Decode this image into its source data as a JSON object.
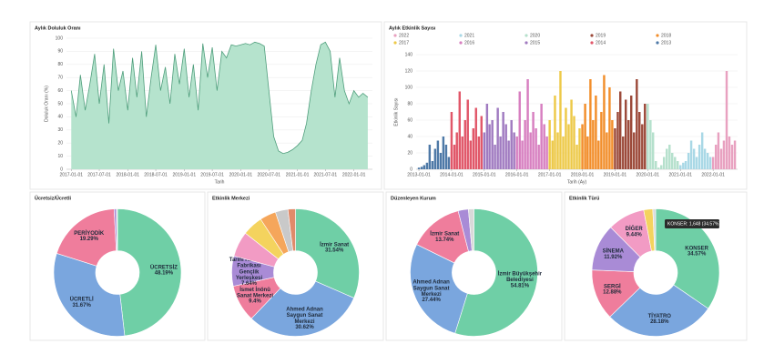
{
  "chart_data": [
    {
      "type": "area",
      "title": "Aylık Doluluk Oranı",
      "ylabel": "Doluluk Oranı (%)",
      "xlabel": "Tarih",
      "color": "#b5e3cd",
      "line_color": "#4f9e7c",
      "x": [
        "2017-01-01",
        "2017-02-01",
        "2017-03-01",
        "2017-04-01",
        "2017-05-01",
        "2017-06-01",
        "2017-07-01",
        "2017-08-01",
        "2017-09-01",
        "2017-10-01",
        "2017-11-01",
        "2017-12-01",
        "2018-01-01",
        "2018-02-01",
        "2018-03-01",
        "2018-04-01",
        "2018-05-01",
        "2018-06-01",
        "2018-07-01",
        "2018-08-01",
        "2018-09-01",
        "2018-10-01",
        "2018-11-01",
        "2018-12-01",
        "2019-01-01",
        "2019-02-01",
        "2019-03-01",
        "2019-04-01",
        "2019-05-01",
        "2019-06-01",
        "2019-07-01",
        "2019-08-01",
        "2019-09-01",
        "2019-10-01",
        "2019-11-01",
        "2019-12-01",
        "2020-01-01",
        "2020-02-01",
        "2020-03-01",
        "2020-04-01",
        "2020-05-01",
        "2020-06-01",
        "2020-07-01",
        "2020-08-01",
        "2020-09-01",
        "2020-10-01",
        "2020-11-01",
        "2020-12-01",
        "2021-01-01",
        "2021-02-01",
        "2021-03-01",
        "2021-04-01",
        "2021-05-01",
        "2021-06-01",
        "2021-07-01",
        "2021-08-01",
        "2021-09-01",
        "2021-10-01",
        "2021-11-01",
        "2021-12-01",
        "2022-01-01",
        "2022-02-01",
        "2022-03-01",
        "2022-04-01"
      ],
      "values": [
        60,
        40,
        72,
        45,
        65,
        88,
        50,
        80,
        35,
        92,
        60,
        75,
        45,
        85,
        55,
        90,
        40,
        70,
        95,
        60,
        78,
        50,
        88,
        65,
        92,
        55,
        80,
        45,
        96,
        70,
        93,
        60,
        90,
        85,
        95,
        94,
        95,
        96,
        95,
        97,
        96,
        94,
        60,
        25,
        14,
        12,
        13,
        15,
        18,
        22,
        35,
        60,
        80,
        95,
        97,
        90,
        55,
        85,
        60,
        50,
        60,
        55,
        58,
        55
      ],
      "xlim": [
        "2016-12-01",
        "2022-05-01"
      ],
      "xticks": [
        "2017-01-01",
        "2017-07-01",
        "2018-01-01",
        "2018-07-01",
        "2019-01-01",
        "2019-07-01",
        "2020-01-01",
        "2020-07-01",
        "2021-01-01",
        "2021-07-01",
        "2022-01-01"
      ],
      "ylim": [
        0,
        100
      ],
      "yticks": [
        0,
        10,
        20,
        30,
        40,
        50,
        60,
        70,
        80,
        90,
        100
      ],
      "grid": true
    },
    {
      "type": "bar",
      "title": "Aylık Etkinlik Sayısı",
      "ylabel": "Etkinlik Sayısı",
      "xlabel": "Tarih (Ay)",
      "series": [
        {
          "name": "2022",
          "color": "#e8a1c0",
          "x": [
            "2022-01-01",
            "2022-02-01",
            "2022-03-01",
            "2022-04-01",
            "2022-05-01",
            "2022-06-01",
            "2022-07-01",
            "2022-08-01",
            "2022-09-01"
          ],
          "values": [
            15,
            30,
            45,
            25,
            35,
            120,
            40,
            30,
            35
          ]
        },
        {
          "name": "2021",
          "color": "#a9d8e6",
          "x": [
            "2021-01-01",
            "2021-02-01",
            "2021-03-01",
            "2021-04-01",
            "2021-05-01",
            "2021-06-01",
            "2021-07-01",
            "2021-08-01",
            "2021-09-01",
            "2021-10-01",
            "2021-11-01",
            "2021-12-01"
          ],
          "values": [
            5,
            8,
            10,
            20,
            35,
            25,
            15,
            30,
            45,
            25,
            20,
            15
          ]
        },
        {
          "name": "2020",
          "color": "#b5e0cc",
          "x": [
            "2020-01-01",
            "2020-02-01",
            "2020-03-01",
            "2020-04-01",
            "2020-05-01",
            "2020-06-01",
            "2020-07-01",
            "2020-08-01",
            "2020-09-01",
            "2020-10-01",
            "2020-11-01",
            "2020-12-01"
          ],
          "values": [
            80,
            60,
            45,
            10,
            2,
            5,
            15,
            25,
            30,
            20,
            15,
            10
          ]
        },
        {
          "name": "2019",
          "color": "#9c4a3a",
          "x": [
            "2019-01-01",
            "2019-02-01",
            "2019-03-01",
            "2019-04-01",
            "2019-05-01",
            "2019-06-01",
            "2019-07-01",
            "2019-08-01",
            "2019-09-01",
            "2019-10-01",
            "2019-11-01",
            "2019-12-01"
          ],
          "values": [
            50,
            70,
            95,
            40,
            85,
            60,
            90,
            45,
            110,
            70,
            55,
            80
          ]
        },
        {
          "name": "2018",
          "color": "#f28e2b",
          "x": [
            "2018-01-01",
            "2018-02-01",
            "2018-03-01",
            "2018-04-01",
            "2018-05-01",
            "2018-06-01",
            "2018-07-01",
            "2018-08-01",
            "2018-09-01",
            "2018-10-01",
            "2018-11-01",
            "2018-12-01"
          ],
          "values": [
            55,
            80,
            40,
            110,
            60,
            90,
            35,
            70,
            115,
            45,
            100,
            60
          ]
        },
        {
          "name": "2017",
          "color": "#edc948",
          "x": [
            "2017-01-01",
            "2017-02-01",
            "2017-03-01",
            "2017-04-01",
            "2017-05-01",
            "2017-06-01",
            "2017-07-01",
            "2017-08-01",
            "2017-09-01",
            "2017-10-01",
            "2017-11-01",
            "2017-12-01"
          ],
          "values": [
            60,
            35,
            90,
            45,
            120,
            40,
            75,
            55,
            85,
            65,
            30,
            50
          ]
        },
        {
          "name": "2016",
          "color": "#d77fc0",
          "x": [
            "2016-01-01",
            "2016-02-01",
            "2016-03-01",
            "2016-04-01",
            "2016-05-01",
            "2016-06-01",
            "2016-07-01",
            "2016-08-01",
            "2016-09-01",
            "2016-10-01",
            "2016-11-01",
            "2016-12-01"
          ],
          "values": [
            40,
            95,
            35,
            60,
            110,
            45,
            70,
            50,
            30,
            80,
            55,
            40
          ]
        },
        {
          "name": "2015",
          "color": "#a07ac0",
          "x": [
            "2015-01-01",
            "2015-02-01",
            "2015-03-01",
            "2015-04-01",
            "2015-05-01",
            "2015-06-01",
            "2015-07-01",
            "2015-08-01",
            "2015-09-01",
            "2015-10-01",
            "2015-11-01",
            "2015-12-01"
          ],
          "values": [
            45,
            80,
            55,
            60,
            30,
            75,
            40,
            70,
            55,
            35,
            60,
            45
          ]
        },
        {
          "name": "2014",
          "color": "#e15769",
          "x": [
            "2014-01-01",
            "2014-02-01",
            "2014-03-01",
            "2014-04-01",
            "2014-05-01",
            "2014-06-01",
            "2014-07-01",
            "2014-08-01",
            "2014-09-01",
            "2014-10-01",
            "2014-11-01",
            "2014-12-01"
          ],
          "values": [
            70,
            30,
            45,
            95,
            40,
            60,
            85,
            35,
            50,
            75,
            40,
            65
          ]
        },
        {
          "name": "2013",
          "color": "#4e79a7",
          "x": [
            "2013-01-01",
            "2013-02-01",
            "2013-03-01",
            "2013-04-01",
            "2013-05-01",
            "2013-06-01",
            "2013-07-01",
            "2013-08-01",
            "2013-09-01",
            "2013-10-01",
            "2013-11-01",
            "2013-12-01"
          ],
          "values": [
            2,
            3,
            5,
            8,
            30,
            10,
            25,
            35,
            20,
            40,
            30,
            15
          ]
        }
      ],
      "xlim": [
        "2012-12-01",
        "2022-10-01"
      ],
      "xticks": [
        "2013-01-01",
        "2014-01-01",
        "2015-01-01",
        "2016-01-01",
        "2017-01-01",
        "2018-01-01",
        "2019-01-01",
        "2020-01-01",
        "2021-01-01",
        "2022-01-01"
      ],
      "ylim": [
        0,
        140
      ],
      "yticks": [
        0,
        20,
        40,
        60,
        80,
        100,
        120,
        140
      ],
      "grid": true
    },
    {
      "type": "donut",
      "title": "Ücretsiz/Ücretli",
      "categories": [
        "ÜCRETSİZ",
        "ÜCRETLİ",
        "PERİYODİK",
        null,
        null
      ],
      "values": [
        48.19,
        31.67,
        19.29,
        0.6,
        0.25
      ],
      "value_labels": [
        "48.19%",
        "31.67%",
        "19.29%",
        null,
        null
      ],
      "colors": [
        "#6fcfa6",
        "#7aa6de",
        "#ef7d9c",
        "#a98bd6",
        "#d9d9d9"
      ]
    },
    {
      "type": "donut",
      "title": "Etkinlik Merkezi",
      "categories": [
        "İzmir Sanat",
        "Ahmed Adnan Saygun Sanat Merkezi",
        "İsmet İnönü Sanat Merkezi",
        "Tarihi Havagazı Fabrikası Gençlik Yerleşkesi",
        null,
        null,
        null,
        null,
        null
      ],
      "values": [
        31.54,
        30.62,
        9.4,
        7.64,
        6.4,
        5.2,
        4.1,
        3.2,
        1.9
      ],
      "value_labels": [
        "31.54%",
        "30.62%",
        "9.4%",
        "7.64%",
        null,
        null,
        null,
        null,
        null
      ],
      "colors": [
        "#6fcfa6",
        "#7aa6de",
        "#ef7d9c",
        "#a98bd6",
        "#f29bc4",
        "#f4d35e",
        "#f5a65b",
        "#c9c9c9",
        "#e08a6a"
      ]
    },
    {
      "type": "donut",
      "title": "Düzenleyen Kurum",
      "categories": [
        "İzmir Büyükşehir Belediyesi",
        "Ahmed Adnan Saygun Sanat Merkezi",
        "İzmir Sanat",
        null,
        null
      ],
      "values": [
        54.81,
        27.44,
        13.74,
        2.6,
        1.4
      ],
      "value_labels": [
        "54.81%",
        "27.44%",
        "13.74%",
        null,
        null
      ],
      "colors": [
        "#6fcfa6",
        "#7aa6de",
        "#ef7d9c",
        "#a98bd6",
        "#d9d9d9"
      ]
    },
    {
      "type": "donut",
      "title": "Etkinlik Türü",
      "categories": [
        "KONSER",
        "TİYATRO",
        "SERGİ",
        "SİNEMA",
        "DİĞER",
        null,
        null
      ],
      "values": [
        34.57,
        28.18,
        12.88,
        11.92,
        9.44,
        2.3,
        0.71
      ],
      "value_labels": [
        "34.57%",
        "28.18%",
        "12.88%",
        "11.92%",
        "9.44%",
        null,
        null
      ],
      "colors": [
        "#6fcfa6",
        "#7aa6de",
        "#ef7d9c",
        "#a98bd6",
        "#f29bc4",
        "#f4d35e",
        "#d9d9d9"
      ],
      "tooltip": "KONSER: 1,648 (34.57%)"
    }
  ]
}
